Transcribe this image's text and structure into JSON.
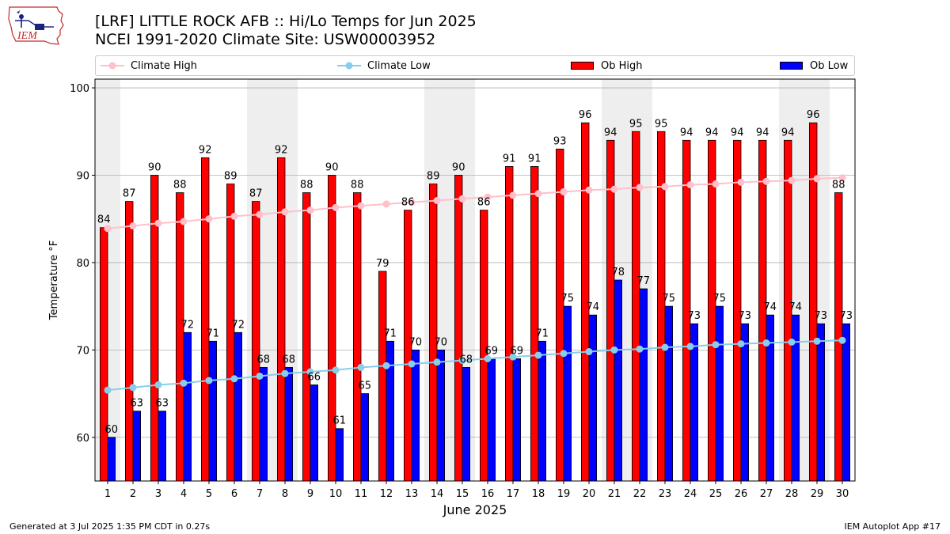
{
  "header": {
    "title_line1": "[LRF] LITTLE ROCK AFB :: Hi/Lo Temps for Jun 2025",
    "title_line2": "NCEI 1991-2020 Climate Site: USW00003952",
    "logo_text": "IEM"
  },
  "footer": {
    "generated": "Generated at 3 Jul 2025 1:35 PM CDT in 0.27s",
    "app": "IEM Autoplot App #17"
  },
  "colors": {
    "ob_high": "#ff0000",
    "ob_low": "#0000ff",
    "climate_high": "#ffc0cb",
    "climate_low": "#87ceeb",
    "weekend_shade": "#eeeeee",
    "grid": "#b0b0b0"
  },
  "chart_data": {
    "type": "bar",
    "title": "[LRF] LITTLE ROCK AFB :: Hi/Lo Temps for Jun 2025",
    "subtitle": "NCEI 1991-2020 Climate Site: USW00003952",
    "xlabel": "June 2025",
    "ylabel": "Temperature °F",
    "ylim": [
      55,
      101
    ],
    "yticks": [
      60,
      70,
      80,
      90,
      100
    ],
    "grid": true,
    "legend_position": "top",
    "categories": [
      "1",
      "2",
      "3",
      "4",
      "5",
      "6",
      "7",
      "8",
      "9",
      "10",
      "11",
      "12",
      "13",
      "14",
      "15",
      "16",
      "17",
      "18",
      "19",
      "20",
      "21",
      "22",
      "23",
      "24",
      "25",
      "26",
      "27",
      "28",
      "29",
      "30"
    ],
    "shaded_days": [
      1,
      7,
      8,
      14,
      15,
      21,
      22,
      28,
      29
    ],
    "series": [
      {
        "name": "Ob High",
        "kind": "bar",
        "color": "#ff0000",
        "values": [
          84,
          87,
          90,
          88,
          92,
          89,
          87,
          92,
          88,
          90,
          88,
          79,
          86,
          89,
          90,
          86,
          91,
          91,
          93,
          96,
          94,
          95,
          95,
          94,
          94,
          94,
          94,
          94,
          96,
          88
        ]
      },
      {
        "name": "Ob Low",
        "kind": "bar",
        "color": "#0000ff",
        "values": [
          60,
          63,
          63,
          72,
          71,
          72,
          68,
          68,
          66,
          61,
          65,
          71,
          70,
          70,
          68,
          69,
          69,
          71,
          75,
          74,
          78,
          77,
          75,
          73,
          75,
          73,
          74,
          74,
          73,
          73
        ]
      },
      {
        "name": "Climate High",
        "kind": "line",
        "color": "#ffc0cb",
        "values": [
          83.9,
          84.2,
          84.5,
          84.7,
          85.0,
          85.3,
          85.5,
          85.8,
          86.0,
          86.3,
          86.5,
          86.7,
          86.9,
          87.1,
          87.3,
          87.5,
          87.7,
          87.9,
          88.1,
          88.3,
          88.4,
          88.6,
          88.7,
          88.9,
          89.0,
          89.2,
          89.3,
          89.4,
          89.6,
          89.7
        ]
      },
      {
        "name": "Climate Low",
        "kind": "line",
        "color": "#87ceeb",
        "values": [
          65.4,
          65.7,
          66.0,
          66.2,
          66.5,
          66.7,
          67.0,
          67.3,
          67.5,
          67.7,
          68.0,
          68.2,
          68.4,
          68.6,
          68.8,
          69.0,
          69.2,
          69.4,
          69.6,
          69.8,
          70.0,
          70.1,
          70.3,
          70.4,
          70.6,
          70.7,
          70.8,
          70.9,
          71.0,
          71.1
        ]
      }
    ]
  }
}
